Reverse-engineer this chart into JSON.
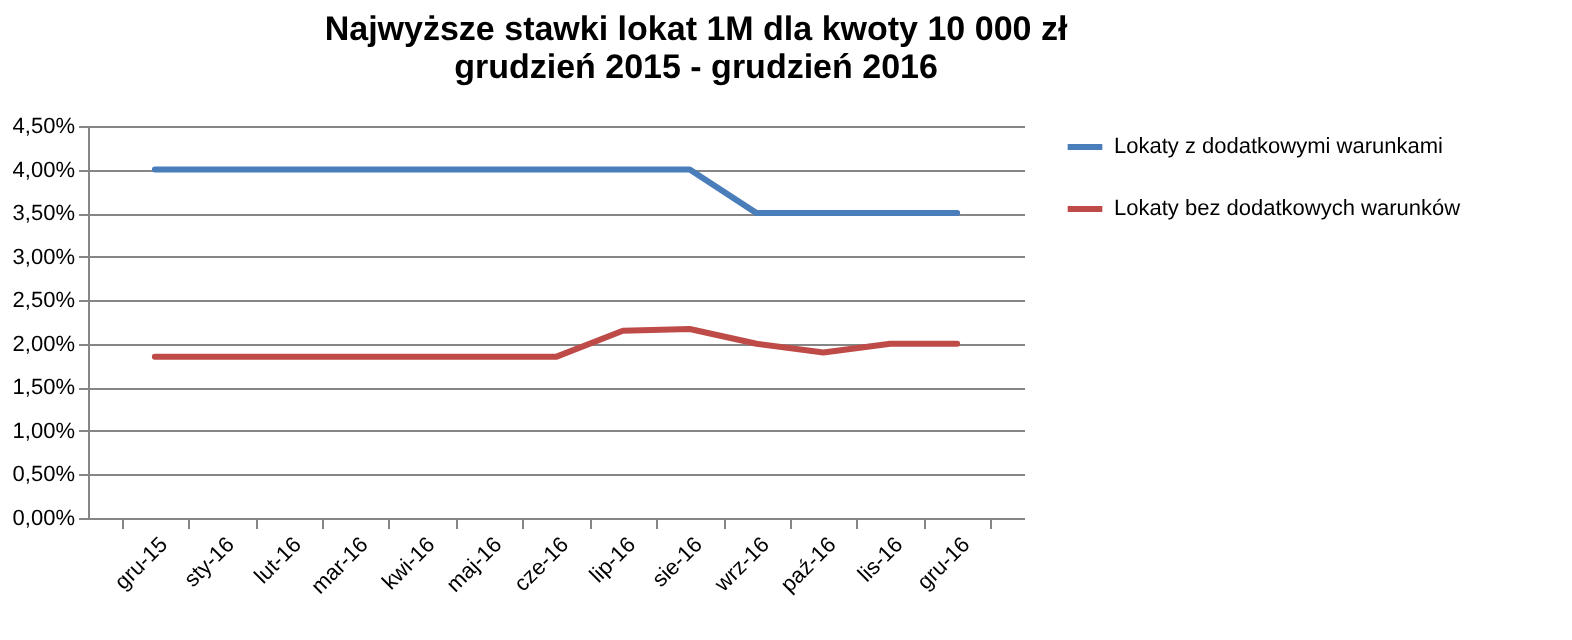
{
  "chart_data": {
    "type": "line",
    "title": "Najwyższe stawki lokat 1M dla kwoty 10 000 zł\ngrudzień 2015 - grudzień 2016",
    "categories": [
      "gru-15",
      "sty-16",
      "lut-16",
      "mar-16",
      "kwi-16",
      "maj-16",
      "cze-16",
      "lip-16",
      "sie-16",
      "wrz-16",
      "paź-16",
      "lis-16",
      "gru-16"
    ],
    "series": [
      {
        "name": "Lokaty z dodatkowymi  warunkami",
        "color": "#4a7ebb",
        "values": [
          4.0,
          4.0,
          4.0,
          4.0,
          4.0,
          4.0,
          4.0,
          4.0,
          4.0,
          3.5,
          3.5,
          3.5,
          3.5
        ]
      },
      {
        "name": "Lokaty bez dodatkowych warunków",
        "color": "#be4b48",
        "values": [
          1.85,
          1.85,
          1.85,
          1.85,
          1.85,
          1.85,
          1.85,
          2.15,
          2.17,
          2.0,
          1.9,
          2.0,
          2.0
        ]
      }
    ],
    "ylim": [
      0,
      4.5
    ],
    "yticks": [
      {
        "value": 0,
        "label": "0,00%"
      },
      {
        "value": 0.5,
        "label": "0,50%"
      },
      {
        "value": 1,
        "label": "1,00%"
      },
      {
        "value": 1.5,
        "label": "1,50%"
      },
      {
        "value": 2,
        "label": "2,00%"
      },
      {
        "value": 2.5,
        "label": "2,50%"
      },
      {
        "value": 3,
        "label": "3,00%"
      },
      {
        "value": 3.5,
        "label": "3,50%"
      },
      {
        "value": 4,
        "label": "4,00%"
      },
      {
        "value": 4.5,
        "label": "4,50%"
      }
    ],
    "grid": "y",
    "legend": "right",
    "marker": "none",
    "line_style": "solid"
  }
}
